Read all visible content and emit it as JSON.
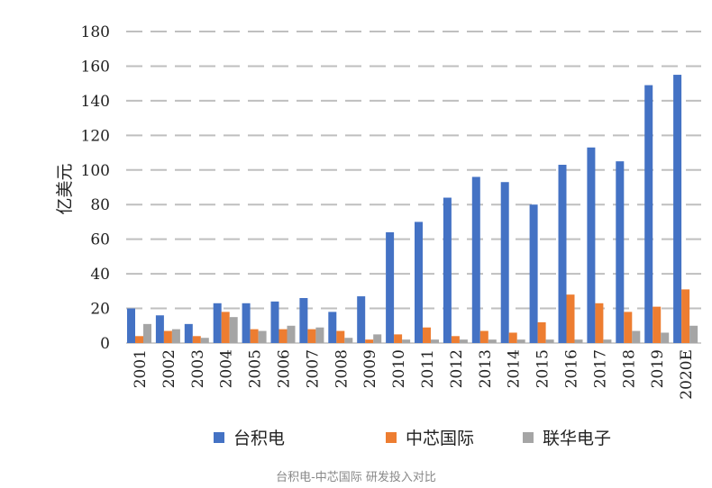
{
  "chart_data": {
    "type": "bar",
    "ylabel": "亿美元",
    "ylim": [
      0,
      180
    ],
    "yticks": [
      0,
      20,
      40,
      60,
      80,
      100,
      120,
      140,
      160,
      180
    ],
    "grid": true,
    "legend_position": "bottom",
    "categories": [
      "2001",
      "2002",
      "2003",
      "2004",
      "2005",
      "2006",
      "2007",
      "2008",
      "2009",
      "2010",
      "2011",
      "2012",
      "2013",
      "2014",
      "2015",
      "2016",
      "2017",
      "2018",
      "2019",
      "2020E"
    ],
    "series": [
      {
        "name": "台积电",
        "color": "#4472C4",
        "values": [
          20,
          16,
          11,
          23,
          23,
          24,
          26,
          18,
          27,
          64,
          70,
          84,
          96,
          93,
          80,
          103,
          113,
          105,
          149,
          155
        ]
      },
      {
        "name": "中芯国际",
        "color": "#ED7D31",
        "values": [
          4,
          7,
          4,
          18,
          8,
          8,
          8,
          7,
          2,
          5,
          9,
          4,
          7,
          6,
          12,
          28,
          23,
          18,
          21,
          31
        ]
      },
      {
        "name": "联华电子",
        "color": "#A5A5A5",
        "values": [
          11,
          8,
          3,
          15,
          7,
          10,
          9,
          3,
          5,
          2,
          2,
          2,
          2,
          2,
          2,
          2,
          2,
          7,
          6,
          10
        ]
      }
    ]
  },
  "caption": "台积电-中芯国际 研发投入对比"
}
